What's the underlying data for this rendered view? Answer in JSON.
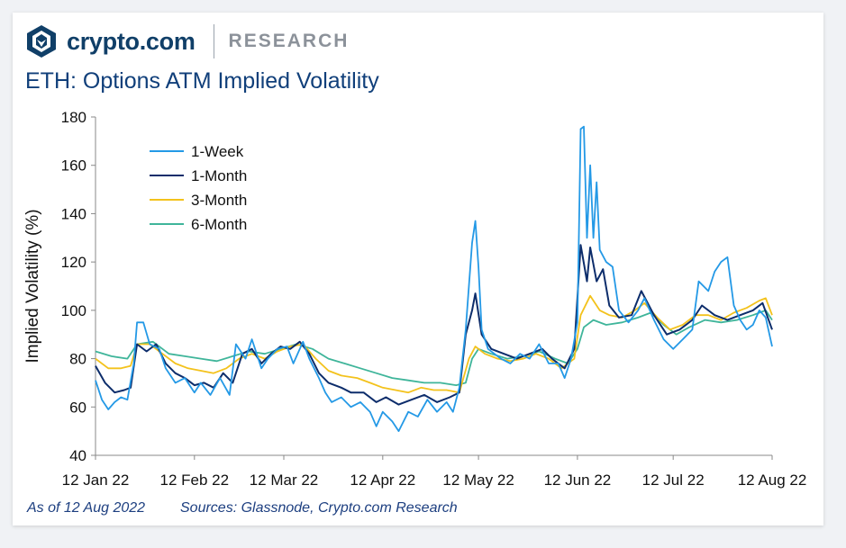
{
  "brand": {
    "name": "crypto.com",
    "section": "RESEARCH",
    "logo_icon": "lion-shield-icon"
  },
  "footer": {
    "asof": "As of 12 Aug 2022",
    "sources": "Sources: Glassnode, Crypto.com Research"
  },
  "colors": {
    "week": "#2499e6",
    "month": "#0d2d6b",
    "month3": "#f3c21c",
    "month6": "#3fb59a",
    "brand": "#103f68"
  },
  "chart_data": {
    "type": "line",
    "title": "ETH: Options ATM Implied Volatility",
    "xlabel": "",
    "ylabel": "Implied Volatility (%)",
    "ylim": [
      40,
      180
    ],
    "yticks": [
      40,
      60,
      80,
      100,
      120,
      140,
      160,
      180
    ],
    "xlim": [
      "2022-01-12",
      "2022-08-12"
    ],
    "xticks": [
      {
        "date": "2022-01-12",
        "label": "12 Jan 22"
      },
      {
        "date": "2022-02-12",
        "label": "12 Feb 22"
      },
      {
        "date": "2022-03-12",
        "label": "12 Mar 22"
      },
      {
        "date": "2022-04-12",
        "label": "12 Apr 22"
      },
      {
        "date": "2022-05-12",
        "label": "12 May 22"
      },
      {
        "date": "2022-06-12",
        "label": "12 Jun 22"
      },
      {
        "date": "2022-07-12",
        "label": "12 Jul 22"
      },
      {
        "date": "2022-08-12",
        "label": "12 Aug 22"
      }
    ],
    "legend_position": "top-left",
    "grid": false,
    "series": [
      {
        "name": "1-Week",
        "points": [
          [
            "2022-01-12",
            71
          ],
          [
            "2022-01-14",
            63
          ],
          [
            "2022-01-16",
            59
          ],
          [
            "2022-01-18",
            62
          ],
          [
            "2022-01-20",
            64
          ],
          [
            "2022-01-22",
            63
          ],
          [
            "2022-01-24",
            78
          ],
          [
            "2022-01-25",
            95
          ],
          [
            "2022-01-27",
            95
          ],
          [
            "2022-01-29",
            86
          ],
          [
            "2022-02-01",
            84
          ],
          [
            "2022-02-03",
            76
          ],
          [
            "2022-02-06",
            70
          ],
          [
            "2022-02-09",
            72
          ],
          [
            "2022-02-12",
            66
          ],
          [
            "2022-02-14",
            70
          ],
          [
            "2022-02-17",
            65
          ],
          [
            "2022-02-20",
            72
          ],
          [
            "2022-02-23",
            65
          ],
          [
            "2022-02-25",
            86
          ],
          [
            "2022-02-28",
            80
          ],
          [
            "2022-03-02",
            88
          ],
          [
            "2022-03-05",
            76
          ],
          [
            "2022-03-07",
            80
          ],
          [
            "2022-03-10",
            84
          ],
          [
            "2022-03-13",
            85
          ],
          [
            "2022-03-15",
            78
          ],
          [
            "2022-03-18",
            87
          ],
          [
            "2022-03-20",
            80
          ],
          [
            "2022-03-23",
            72
          ],
          [
            "2022-03-25",
            66
          ],
          [
            "2022-03-27",
            62
          ],
          [
            "2022-03-30",
            64
          ],
          [
            "2022-04-02",
            60
          ],
          [
            "2022-04-05",
            62
          ],
          [
            "2022-04-08",
            58
          ],
          [
            "2022-04-10",
            52
          ],
          [
            "2022-04-12",
            58
          ],
          [
            "2022-04-15",
            54
          ],
          [
            "2022-04-17",
            50
          ],
          [
            "2022-04-20",
            58
          ],
          [
            "2022-04-23",
            56
          ],
          [
            "2022-04-26",
            63
          ],
          [
            "2022-04-29",
            58
          ],
          [
            "2022-05-02",
            62
          ],
          [
            "2022-05-04",
            58
          ],
          [
            "2022-05-06",
            68
          ],
          [
            "2022-05-08",
            92
          ],
          [
            "2022-05-10",
            128
          ],
          [
            "2022-05-11",
            137
          ],
          [
            "2022-05-12",
            118
          ],
          [
            "2022-05-13",
            92
          ],
          [
            "2022-05-15",
            84
          ],
          [
            "2022-05-17",
            82
          ],
          [
            "2022-05-19",
            80
          ],
          [
            "2022-05-22",
            78
          ],
          [
            "2022-05-25",
            82
          ],
          [
            "2022-05-28",
            80
          ],
          [
            "2022-05-31",
            86
          ],
          [
            "2022-06-03",
            78
          ],
          [
            "2022-06-06",
            78
          ],
          [
            "2022-06-08",
            72
          ],
          [
            "2022-06-10",
            80
          ],
          [
            "2022-06-12",
            95
          ],
          [
            "2022-06-13",
            175
          ],
          [
            "2022-06-14",
            176
          ],
          [
            "2022-06-15",
            130
          ],
          [
            "2022-06-16",
            160
          ],
          [
            "2022-06-17",
            130
          ],
          [
            "2022-06-18",
            153
          ],
          [
            "2022-06-19",
            125
          ],
          [
            "2022-06-21",
            120
          ],
          [
            "2022-06-23",
            118
          ],
          [
            "2022-06-25",
            100
          ],
          [
            "2022-06-28",
            95
          ],
          [
            "2022-07-01",
            100
          ],
          [
            "2022-07-03",
            105
          ],
          [
            "2022-07-06",
            96
          ],
          [
            "2022-07-09",
            88
          ],
          [
            "2022-07-12",
            84
          ],
          [
            "2022-07-15",
            88
          ],
          [
            "2022-07-18",
            92
          ],
          [
            "2022-07-20",
            112
          ],
          [
            "2022-07-23",
            108
          ],
          [
            "2022-07-25",
            116
          ],
          [
            "2022-07-27",
            120
          ],
          [
            "2022-07-29",
            122
          ],
          [
            "2022-07-31",
            102
          ],
          [
            "2022-08-02",
            96
          ],
          [
            "2022-08-04",
            92
          ],
          [
            "2022-08-06",
            94
          ],
          [
            "2022-08-08",
            100
          ],
          [
            "2022-08-10",
            97
          ],
          [
            "2022-08-12",
            85
          ]
        ]
      },
      {
        "name": "1-Month",
        "points": [
          [
            "2022-01-12",
            77
          ],
          [
            "2022-01-15",
            70
          ],
          [
            "2022-01-18",
            66
          ],
          [
            "2022-01-21",
            67
          ],
          [
            "2022-01-23",
            68
          ],
          [
            "2022-01-25",
            86
          ],
          [
            "2022-01-28",
            83
          ],
          [
            "2022-01-31",
            86
          ],
          [
            "2022-02-03",
            78
          ],
          [
            "2022-02-06",
            74
          ],
          [
            "2022-02-09",
            72
          ],
          [
            "2022-02-12",
            69
          ],
          [
            "2022-02-15",
            70
          ],
          [
            "2022-02-18",
            68
          ],
          [
            "2022-02-21",
            74
          ],
          [
            "2022-02-24",
            70
          ],
          [
            "2022-02-27",
            82
          ],
          [
            "2022-03-02",
            84
          ],
          [
            "2022-03-05",
            78
          ],
          [
            "2022-03-08",
            82
          ],
          [
            "2022-03-11",
            85
          ],
          [
            "2022-03-14",
            84
          ],
          [
            "2022-03-17",
            87
          ],
          [
            "2022-03-20",
            82
          ],
          [
            "2022-03-23",
            74
          ],
          [
            "2022-03-26",
            70
          ],
          [
            "2022-03-30",
            68
          ],
          [
            "2022-04-02",
            66
          ],
          [
            "2022-04-06",
            66
          ],
          [
            "2022-04-10",
            62
          ],
          [
            "2022-04-13",
            64
          ],
          [
            "2022-04-17",
            61
          ],
          [
            "2022-04-21",
            63
          ],
          [
            "2022-04-25",
            65
          ],
          [
            "2022-04-29",
            62
          ],
          [
            "2022-05-03",
            64
          ],
          [
            "2022-05-06",
            66
          ],
          [
            "2022-05-08",
            90
          ],
          [
            "2022-05-10",
            100
          ],
          [
            "2022-05-11",
            107
          ],
          [
            "2022-05-13",
            90
          ],
          [
            "2022-05-16",
            84
          ],
          [
            "2022-05-20",
            82
          ],
          [
            "2022-05-24",
            80
          ],
          [
            "2022-05-28",
            82
          ],
          [
            "2022-06-01",
            84
          ],
          [
            "2022-06-04",
            80
          ],
          [
            "2022-06-08",
            76
          ],
          [
            "2022-06-11",
            84
          ],
          [
            "2022-06-13",
            127
          ],
          [
            "2022-06-15",
            112
          ],
          [
            "2022-06-16",
            126
          ],
          [
            "2022-06-18",
            112
          ],
          [
            "2022-06-20",
            117
          ],
          [
            "2022-06-22",
            102
          ],
          [
            "2022-06-25",
            97
          ],
          [
            "2022-06-29",
            98
          ],
          [
            "2022-07-02",
            108
          ],
          [
            "2022-07-06",
            98
          ],
          [
            "2022-07-10",
            90
          ],
          [
            "2022-07-14",
            92
          ],
          [
            "2022-07-18",
            96
          ],
          [
            "2022-07-21",
            102
          ],
          [
            "2022-07-25",
            98
          ],
          [
            "2022-07-29",
            96
          ],
          [
            "2022-08-02",
            98
          ],
          [
            "2022-08-06",
            100
          ],
          [
            "2022-08-09",
            103
          ],
          [
            "2022-08-12",
            92
          ]
        ]
      },
      {
        "name": "3-Month",
        "points": [
          [
            "2022-01-12",
            80
          ],
          [
            "2022-01-16",
            76
          ],
          [
            "2022-01-20",
            76
          ],
          [
            "2022-01-23",
            77
          ],
          [
            "2022-01-25",
            86
          ],
          [
            "2022-01-29",
            86
          ],
          [
            "2022-02-02",
            82
          ],
          [
            "2022-02-06",
            78
          ],
          [
            "2022-02-10",
            76
          ],
          [
            "2022-02-14",
            75
          ],
          [
            "2022-02-18",
            74
          ],
          [
            "2022-02-22",
            76
          ],
          [
            "2022-02-26",
            80
          ],
          [
            "2022-03-02",
            82
          ],
          [
            "2022-03-06",
            80
          ],
          [
            "2022-03-10",
            83
          ],
          [
            "2022-03-14",
            85
          ],
          [
            "2022-03-18",
            86
          ],
          [
            "2022-03-22",
            80
          ],
          [
            "2022-03-26",
            75
          ],
          [
            "2022-03-30",
            73
          ],
          [
            "2022-04-04",
            72
          ],
          [
            "2022-04-08",
            70
          ],
          [
            "2022-04-12",
            68
          ],
          [
            "2022-04-16",
            67
          ],
          [
            "2022-04-20",
            66
          ],
          [
            "2022-04-24",
            68
          ],
          [
            "2022-04-28",
            67
          ],
          [
            "2022-05-02",
            67
          ],
          [
            "2022-05-06",
            66
          ],
          [
            "2022-05-09",
            80
          ],
          [
            "2022-05-11",
            85
          ],
          [
            "2022-05-14",
            82
          ],
          [
            "2022-05-18",
            80
          ],
          [
            "2022-05-22",
            79
          ],
          [
            "2022-05-26",
            80
          ],
          [
            "2022-05-30",
            82
          ],
          [
            "2022-06-03",
            80
          ],
          [
            "2022-06-07",
            76
          ],
          [
            "2022-06-11",
            80
          ],
          [
            "2022-06-13",
            98
          ],
          [
            "2022-06-16",
            106
          ],
          [
            "2022-06-19",
            100
          ],
          [
            "2022-06-22",
            98
          ],
          [
            "2022-06-26",
            97
          ],
          [
            "2022-06-30",
            100
          ],
          [
            "2022-07-03",
            103
          ],
          [
            "2022-07-07",
            97
          ],
          [
            "2022-07-11",
            92
          ],
          [
            "2022-07-15",
            94
          ],
          [
            "2022-07-19",
            98
          ],
          [
            "2022-07-23",
            98
          ],
          [
            "2022-07-27",
            96
          ],
          [
            "2022-07-31",
            99
          ],
          [
            "2022-08-04",
            101
          ],
          [
            "2022-08-08",
            104
          ],
          [
            "2022-08-10",
            105
          ],
          [
            "2022-08-12",
            98
          ]
        ]
      },
      {
        "name": "6-Month",
        "points": [
          [
            "2022-01-12",
            83
          ],
          [
            "2022-01-17",
            81
          ],
          [
            "2022-01-22",
            80
          ],
          [
            "2022-01-25",
            86
          ],
          [
            "2022-01-30",
            87
          ],
          [
            "2022-02-04",
            82
          ],
          [
            "2022-02-09",
            81
          ],
          [
            "2022-02-14",
            80
          ],
          [
            "2022-02-19",
            79
          ],
          [
            "2022-02-24",
            81
          ],
          [
            "2022-03-01",
            83
          ],
          [
            "2022-03-06",
            82
          ],
          [
            "2022-03-11",
            84
          ],
          [
            "2022-03-16",
            86
          ],
          [
            "2022-03-21",
            84
          ],
          [
            "2022-03-26",
            80
          ],
          [
            "2022-03-31",
            78
          ],
          [
            "2022-04-05",
            76
          ],
          [
            "2022-04-10",
            74
          ],
          [
            "2022-04-15",
            72
          ],
          [
            "2022-04-20",
            71
          ],
          [
            "2022-04-25",
            70
          ],
          [
            "2022-04-30",
            70
          ],
          [
            "2022-05-05",
            69
          ],
          [
            "2022-05-08",
            70
          ],
          [
            "2022-05-10",
            80
          ],
          [
            "2022-05-12",
            84
          ],
          [
            "2022-05-16",
            82
          ],
          [
            "2022-05-21",
            80
          ],
          [
            "2022-05-26",
            81
          ],
          [
            "2022-05-31",
            83
          ],
          [
            "2022-06-05",
            80
          ],
          [
            "2022-06-09",
            78
          ],
          [
            "2022-06-12",
            84
          ],
          [
            "2022-06-14",
            93
          ],
          [
            "2022-06-17",
            96
          ],
          [
            "2022-06-21",
            94
          ],
          [
            "2022-06-26",
            95
          ],
          [
            "2022-07-01",
            97
          ],
          [
            "2022-07-05",
            99
          ],
          [
            "2022-07-09",
            94
          ],
          [
            "2022-07-13",
            90
          ],
          [
            "2022-07-17",
            93
          ],
          [
            "2022-07-22",
            96
          ],
          [
            "2022-07-27",
            95
          ],
          [
            "2022-08-01",
            96
          ],
          [
            "2022-08-06",
            98
          ],
          [
            "2022-08-10",
            100
          ],
          [
            "2022-08-12",
            96
          ]
        ]
      }
    ]
  }
}
